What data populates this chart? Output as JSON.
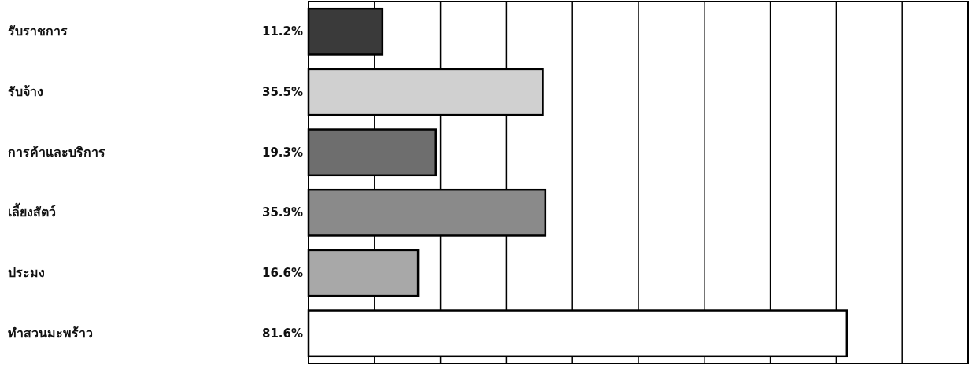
{
  "chart_data": {
    "type": "bar",
    "orientation": "horizontal",
    "categories": [
      "รับราชการ",
      "รับจ้าง",
      "การค้าและบริการ",
      "เลี้ยงสัตว์",
      "ประมง",
      "ทำสวนมะพร้าว"
    ],
    "values": [
      11.2,
      35.5,
      19.3,
      35.9,
      16.6,
      81.6
    ],
    "value_labels": [
      "11.2%",
      "35.5%",
      "19.3%",
      "35.9%",
      "16.6%",
      "81.6%"
    ],
    "colors": [
      "#3a3a3a",
      "#d0d0d0",
      "#6e6e6e",
      "#8a8a8a",
      "#a8a8a8",
      "#ffffff"
    ],
    "xlim": [
      0,
      100
    ],
    "xticks": [
      {
        "value": 0,
        "label": null
      },
      {
        "value": 10,
        "label": null
      },
      {
        "value": 20,
        "label": null
      },
      {
        "value": 30,
        "label": null
      },
      {
        "value": 40,
        "label": null
      },
      {
        "value": 50,
        "label": null
      },
      {
        "value": 60,
        "label": null
      },
      {
        "value": 70,
        "label": null
      },
      {
        "value": 80,
        "label": null
      },
      {
        "value": 90,
        "label": null
      },
      {
        "value": 100,
        "label": null
      }
    ],
    "grid": "x"
  }
}
